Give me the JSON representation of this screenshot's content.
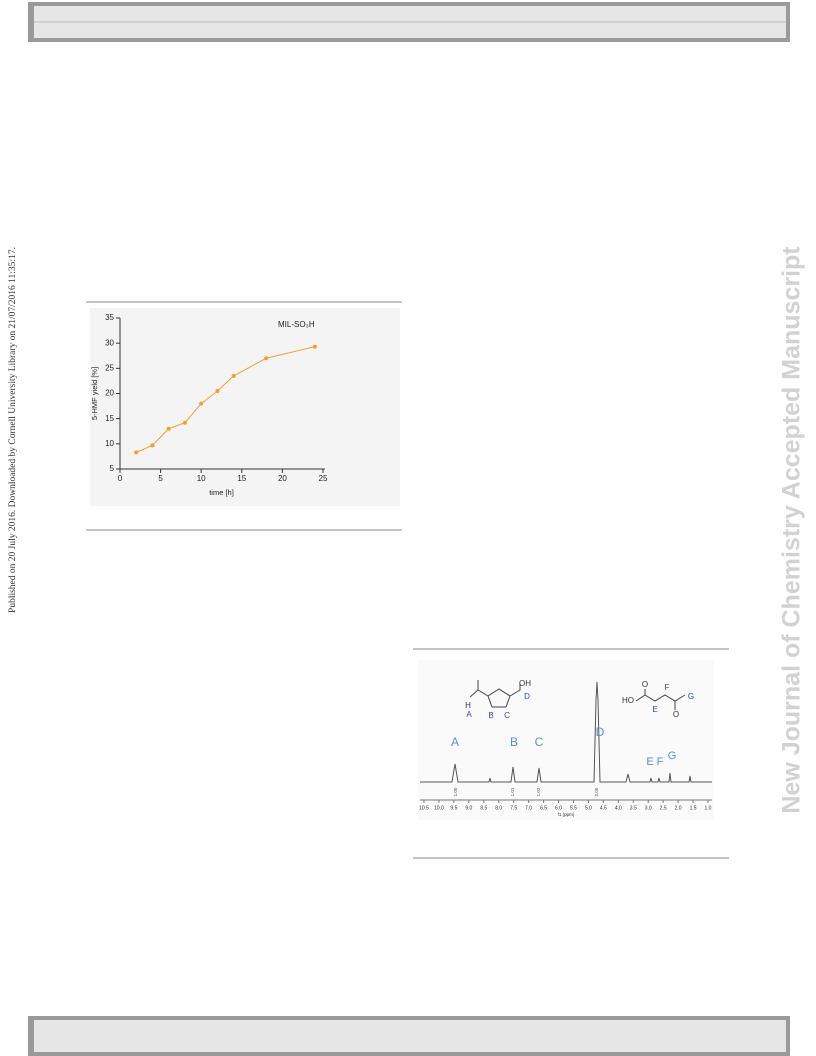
{
  "sidebar_note": "Published on 20 July 2016. Downloaded by Cornell University Library on 21/07/2016 11:35:17.",
  "watermark": "New Journal of Chemistry Accepted Manuscript",
  "chart_data": {
    "type": "line",
    "title": "MIL-SO₃H",
    "x_label": "time [h]",
    "y_label": "5-HMF yield [%]",
    "x": [
      2,
      4,
      6,
      8,
      10,
      12,
      14,
      18,
      24
    ],
    "values": [
      8.3,
      9.7,
      13,
      14.2,
      18,
      20.5,
      23.5,
      27,
      29.3
    ],
    "color": "#f0a030",
    "xlim": [
      0,
      25
    ],
    "ylim": [
      5,
      35
    ],
    "xticks": [
      0,
      5,
      10,
      15,
      20,
      25
    ],
    "yticks": [
      5,
      10,
      15,
      20,
      25,
      30,
      35
    ]
  },
  "nmr_figure": {
    "peak_labels": [
      "A",
      "B",
      "C",
      "D",
      "E",
      "F",
      "G"
    ],
    "structure_labels": [
      "OH",
      "H",
      "A",
      "B",
      "C",
      "D",
      "HO",
      "O",
      "O",
      "E",
      "F",
      "G"
    ],
    "axis_ticks": [
      "10.5",
      "10.0",
      "9.5",
      "9.0",
      "8.5",
      "8.0",
      "7.5",
      "7.0",
      "6.5",
      "6.0",
      "5.5",
      "5.0",
      "4.5",
      "4.0",
      "3.5",
      "3.0",
      "2.5",
      "2.0",
      "1.5",
      "1.0"
    ],
    "axis_label": "f1 (ppm)",
    "integrals": [
      "1.00",
      "1.01",
      "1.02",
      "2.05"
    ]
  }
}
